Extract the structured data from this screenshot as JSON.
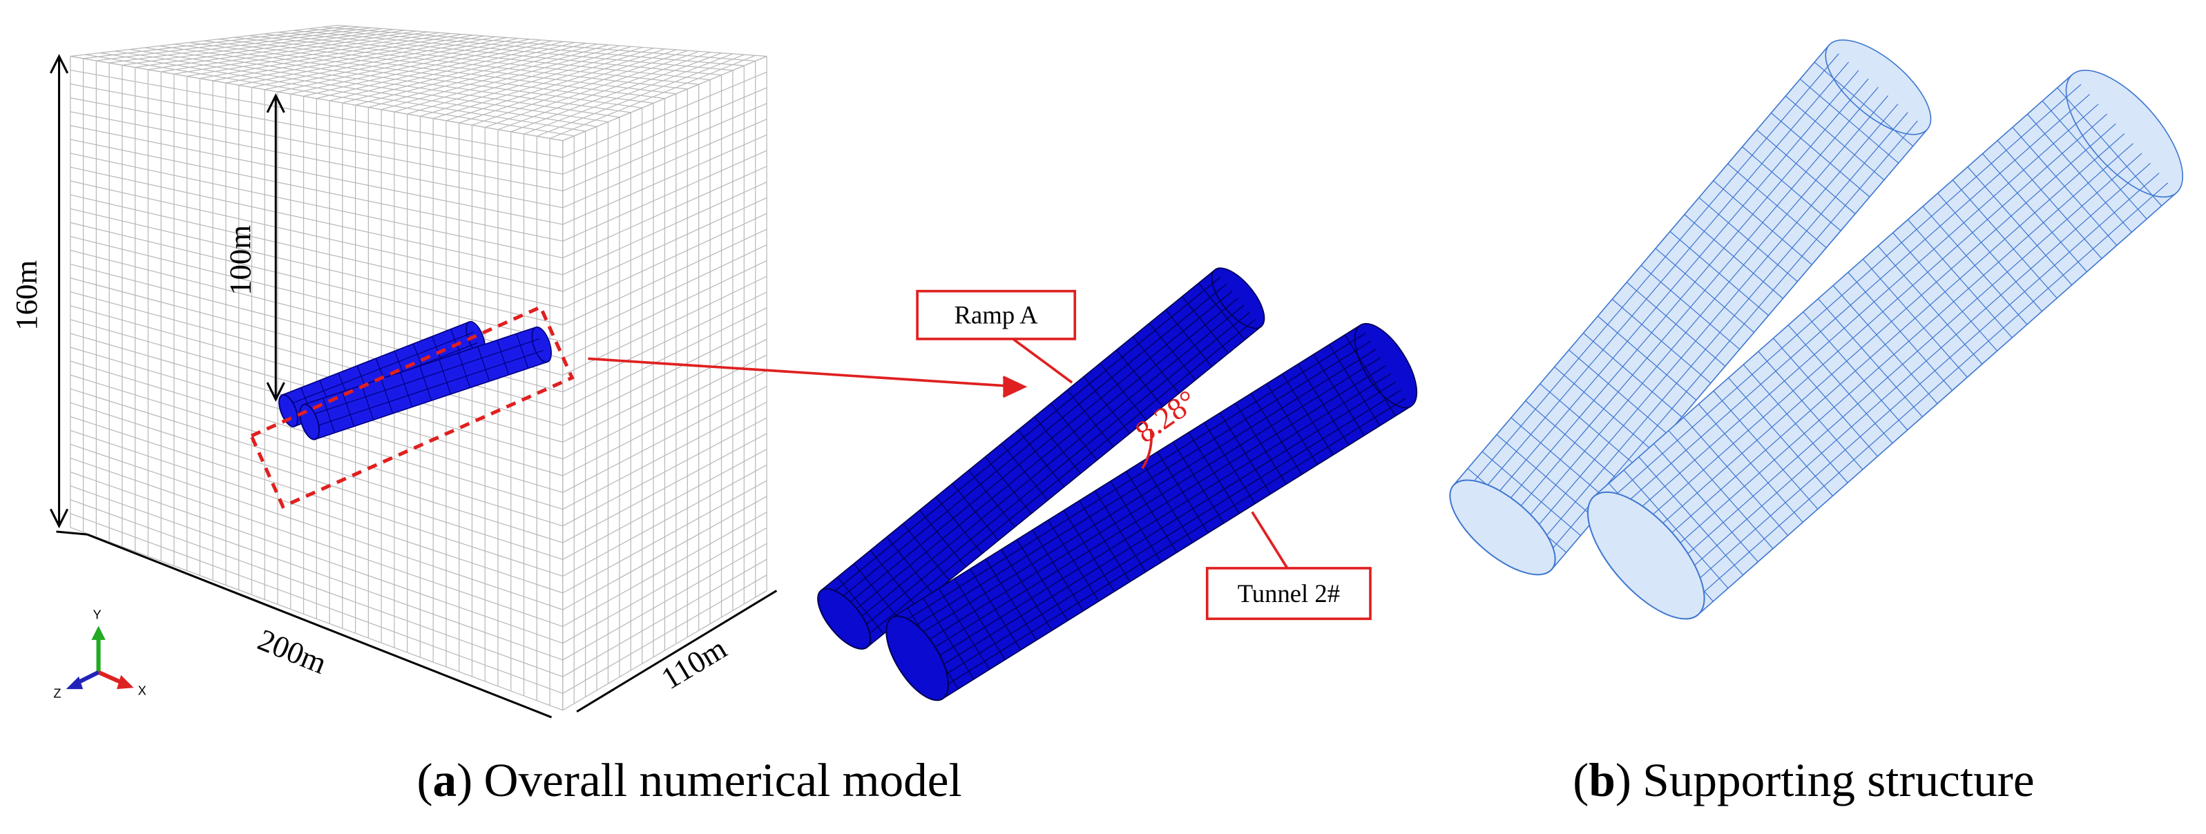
{
  "panel_a": {
    "dimensions": {
      "height": "160m",
      "depth": "100m",
      "length": "200m",
      "width": "110m"
    },
    "axes": {
      "y": "Y",
      "z": "Z",
      "x": "X"
    },
    "labels": {
      "ramp": "Ramp A",
      "tunnel": "Tunnel 2#",
      "angle": "8.28°"
    },
    "caption": {
      "open": "(",
      "letter": "a",
      "close": ")",
      "text": "Overall numerical model"
    }
  },
  "panel_b": {
    "caption": {
      "open": "(",
      "letter": "b",
      "close": ")",
      "text": "Supporting structure"
    }
  }
}
